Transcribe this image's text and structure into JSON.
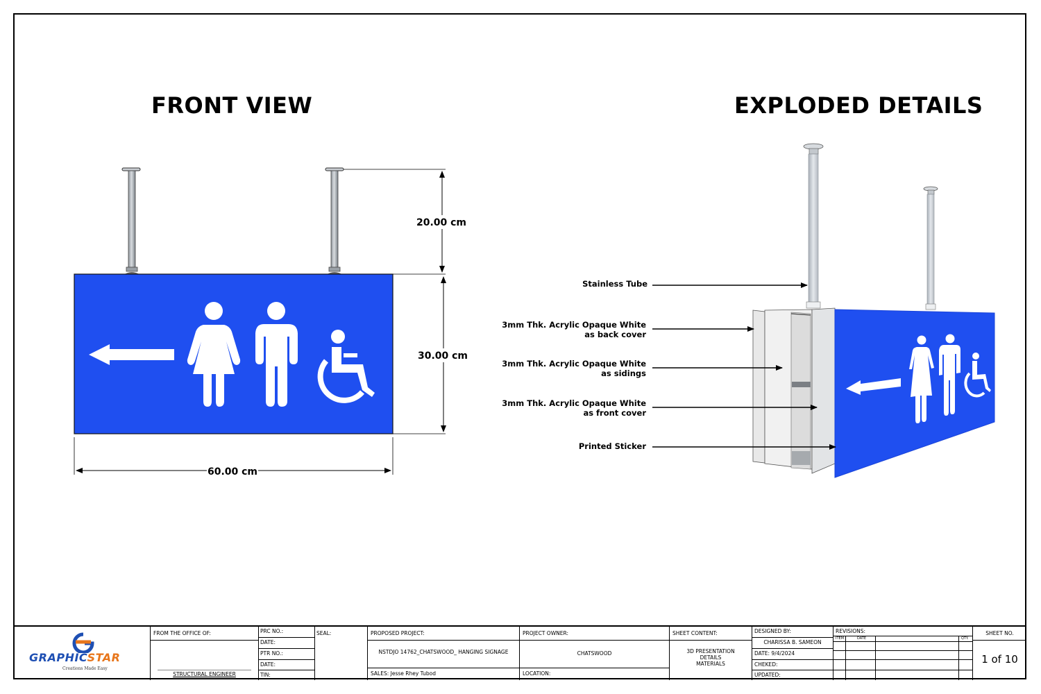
{
  "titles": {
    "front_view": "FRONT VIEW",
    "exploded_details": "EXPLODED DETAILS"
  },
  "dimensions": {
    "pipe_height": "20.00 cm",
    "panel_height": "30.00 cm",
    "panel_width": "60.00 cm"
  },
  "callouts": [
    {
      "line1": "Stainless Tube",
      "line2": ""
    },
    {
      "line1": "3mm Thk. Acrylic Opaque White",
      "line2": "as back cover"
    },
    {
      "line1": "3mm Thk. Acrylic Opaque White",
      "line2": "as sidings"
    },
    {
      "line1": "3mm Thk. Acrylic Opaque White",
      "line2": "as front cover"
    },
    {
      "line1": "Printed Sticker",
      "line2": ""
    }
  ],
  "colors": {
    "sign_blue": "#1f4ff0",
    "sign_blue_dark": "#1a44d8",
    "pipe_gray": "#b9bec4",
    "logo_blue": "#1e4fb3",
    "logo_orange": "#e8761b"
  },
  "icons": [
    "arrow-left-icon",
    "female-person-icon",
    "male-person-icon",
    "wheelchair-icon"
  ],
  "title_block": {
    "logo_text_1": "GRAPHIC",
    "logo_text_2": "STAR",
    "logo_tagline": "Creations Made Easy",
    "from_office_label": "FROM THE OFFICE OF:",
    "structural_engineer": "STRUCTURAL ENGINEER",
    "prc_no": "PRC NO.:",
    "date1": "DATE:",
    "ptr_no": "PTR NO.:",
    "date2": "DATE:",
    "tin": "TIN:",
    "seal": "SEAL:",
    "proposed_project_label": "PROPOSED PROJECT:",
    "proposed_project_value": "NSTDJO 14762_CHATSWOOD_ HANGING SIGNAGE",
    "sales": "SALES: Jesse Rhey Tubod",
    "project_owner_label": "PROJECT OWNER:",
    "project_owner_value": "CHATSWOOD",
    "location": "LOCATION:",
    "sheet_content_label": "SHEET CONTENT:",
    "sheet_content_lines": [
      "3D PRESENTATION",
      "DETAILS",
      "MATERIALS"
    ],
    "designed_by_label": "DESIGNED BY:",
    "designed_by_value": "CHARISSA B. SAMEON",
    "date_value": "DATE: 9/4/2024",
    "checked": "CHEKED:",
    "updated": "UPDATED:",
    "revisions_label": "REVISIONS:",
    "rev_item": "ITEM",
    "rev_date": "DATE",
    "rev_qty": "QTY.",
    "sheet_no_label": "SHEET NO.",
    "sheet_no_value": "1 of 10"
  }
}
